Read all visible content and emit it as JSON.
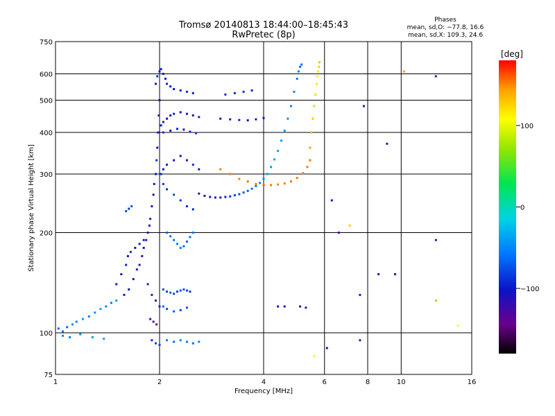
{
  "header": {
    "title_line1": "Tromsø 20140813 18:44:00–18:45:43",
    "title_line2": "RwPretec (8p)",
    "phases_title": "Phases",
    "phases_o": "mean, sd,O: −77.8, 16.6",
    "phases_x": "mean, sd,X: 109.3, 24.6"
  },
  "chart_data": {
    "type": "scatter",
    "xlabel": "Frequency [MHz]",
    "ylabel": "Stationary phase Virtual Height [km]",
    "x_scale": "log",
    "y_scale": "log",
    "xlim": [
      1,
      16
    ],
    "ylim": [
      75,
      750
    ],
    "xticks": [
      1,
      2,
      4,
      6,
      8,
      10,
      16
    ],
    "xtick_labels": [
      "1",
      "2",
      "4",
      "6",
      "8",
      "10",
      "16"
    ],
    "yticks": [
      75,
      100,
      200,
      300,
      400,
      500,
      600,
      750
    ],
    "ytick_labels": [
      "75",
      "100",
      "200",
      "300",
      "400",
      "500",
      "600",
      "750"
    ],
    "grid": true,
    "colorbar": {
      "label": "[deg]",
      "range": [
        -180,
        180
      ],
      "ticks": [
        100,
        0,
        -100
      ],
      "tick_labels": [
        "100",
        "0",
        "−100"
      ],
      "colors": [
        "#000000",
        "#6a008c",
        "#0a14c8",
        "#0078ff",
        "#00d2e6",
        "#00e650",
        "#96e600",
        "#ffff00",
        "#ffa000",
        "#ff0000"
      ]
    },
    "series": [
      {
        "x": [
          1.02,
          1.05,
          1.08,
          1.12,
          1.15,
          1.2,
          1.25,
          1.3,
          1.35,
          1.4,
          1.45,
          1.5,
          1.05,
          1.1,
          1.18,
          1.28,
          1.38
        ],
        "y": [
          103,
          101,
          104,
          106,
          108,
          110,
          112,
          115,
          118,
          120,
          123,
          125,
          98,
          97,
          99,
          97,
          96
        ],
        "phase": [
          -70,
          -60,
          -65,
          -50,
          -55,
          -45,
          -60,
          -50,
          -40,
          -55,
          -60,
          -45,
          -55,
          -60,
          -50,
          -45,
          -40
        ]
      },
      {
        "x": [
          1.5,
          1.55,
          1.6,
          1.62,
          1.65,
          1.7,
          1.75,
          1.8,
          1.58,
          1.63,
          1.68,
          1.72
        ],
        "y": [
          140,
          150,
          160,
          170,
          175,
          180,
          185,
          190,
          130,
          135,
          145,
          155
        ],
        "phase": [
          -100,
          -110,
          -95,
          -105,
          -90,
          -115,
          -100,
          -95,
          -110,
          -100,
          -105,
          -95
        ]
      },
      {
        "x": [
          1.6,
          1.63,
          1.66
        ],
        "y": [
          232,
          236,
          240
        ],
        "phase": [
          -80,
          -85,
          -75
        ]
      },
      {
        "x": [
          1.75,
          1.78,
          1.8,
          1.83,
          1.85,
          1.87,
          1.88,
          1.9,
          1.92,
          1.93,
          1.95,
          1.96,
          1.97,
          1.98,
          1.99,
          2.0,
          1.85,
          1.9,
          1.95,
          2.0,
          1.88,
          1.92,
          1.96,
          1.9,
          1.95,
          2.0
        ],
        "y": [
          160,
          170,
          180,
          190,
          200,
          210,
          220,
          240,
          260,
          280,
          300,
          330,
          360,
          400,
          450,
          500,
          140,
          130,
          125,
          120,
          110,
          108,
          106,
          95,
          93,
          92
        ],
        "phase": [
          -110,
          -120,
          -100,
          -130,
          -115,
          -105,
          -95,
          -110,
          -100,
          -95,
          -105,
          -90,
          -100,
          -110,
          -105,
          -100,
          -130,
          -125,
          -120,
          -115,
          -140,
          -130,
          -135,
          -90,
          -85,
          -80
        ]
      },
      {
        "x": [
          1.95,
          1.97,
          2.0,
          2.02,
          2.05,
          2.08,
          2.1,
          2.15,
          2.2,
          2.3,
          2.4,
          2.5
        ],
        "y": [
          560,
          590,
          610,
          620,
          600,
          580,
          560,
          550,
          540,
          535,
          530,
          525
        ],
        "phase": [
          -100,
          -95,
          -105,
          -90,
          -110,
          -100,
          -95,
          -105,
          -100,
          -95,
          -90,
          -100
        ]
      },
      {
        "x": [
          2.02,
          2.05,
          2.1,
          2.15,
          2.2,
          2.3,
          2.4,
          2.5,
          2.6,
          2.05,
          2.15,
          2.25,
          2.35,
          2.45,
          2.55
        ],
        "y": [
          420,
          430,
          440,
          450,
          455,
          460,
          455,
          450,
          445,
          400,
          405,
          410,
          408,
          402,
          398
        ],
        "phase": [
          -95,
          -105,
          -100,
          -110,
          -95,
          -100,
          -105,
          -100,
          -95,
          -90,
          -100,
          -95,
          -105,
          -100,
          -95
        ]
      },
      {
        "x": [
          2.02,
          2.05,
          2.1,
          2.2,
          2.3,
          2.4,
          2.5,
          2.6,
          2.05,
          2.1,
          2.2,
          2.3,
          2.4,
          2.5
        ],
        "y": [
          300,
          310,
          320,
          330,
          340,
          330,
          320,
          310,
          280,
          270,
          260,
          250,
          240,
          235
        ],
        "phase": [
          -90,
          -100,
          -95,
          -105,
          -100,
          -95,
          -90,
          -100,
          -85,
          -90,
          -80,
          -85,
          -90,
          -95
        ]
      },
      {
        "x": [
          2.1,
          2.15,
          2.2,
          2.25,
          2.3,
          2.35,
          2.4,
          2.45,
          2.5
        ],
        "y": [
          200,
          195,
          190,
          185,
          180,
          182,
          188,
          194,
          200
        ],
        "phase": [
          -70,
          -65,
          -60,
          -55,
          -60,
          -65,
          -70,
          -65,
          -60
        ]
      },
      {
        "x": [
          2.05,
          2.1,
          2.15,
          2.2,
          2.25,
          2.3,
          2.35,
          2.4,
          2.45,
          2.05,
          2.1,
          2.2,
          2.3,
          2.4
        ],
        "y": [
          135,
          133,
          132,
          131,
          133,
          134,
          135,
          134,
          133,
          120,
          118,
          116,
          117,
          119
        ],
        "phase": [
          -80,
          -85,
          -75,
          -80,
          -85,
          -80,
          -75,
          -80,
          -85,
          -70,
          -75,
          -70,
          -80,
          -75
        ]
      },
      {
        "x": [
          2.1,
          2.2,
          2.3,
          2.4,
          2.5,
          2.6
        ],
        "y": [
          95,
          94,
          95,
          94,
          93,
          94
        ],
        "phase": [
          -60,
          -65,
          -55,
          -60,
          -65,
          -55
        ]
      },
      {
        "x": [
          2.6,
          2.7,
          2.8,
          2.9,
          3.0,
          3.1,
          3.2,
          3.3,
          3.4,
          3.5,
          3.6,
          3.7,
          3.8,
          3.9,
          4.0,
          4.1,
          4.2,
          4.3,
          4.4,
          4.5,
          4.6,
          4.7,
          4.8,
          4.9,
          5.0,
          5.05,
          5.1,
          5.15
        ],
        "y": [
          262,
          258,
          256,
          255,
          255,
          256,
          257,
          259,
          261,
          264,
          267,
          271,
          276,
          282,
          290,
          300,
          315,
          332,
          352,
          378,
          405,
          440,
          480,
          530,
          580,
          610,
          630,
          640
        ],
        "phase": [
          -120,
          -115,
          -110,
          -105,
          -100,
          -95,
          -90,
          -85,
          -80,
          -75,
          -70,
          -65,
          -60,
          -55,
          -50,
          -45,
          -45,
          -40,
          -40,
          -45,
          -50,
          -50,
          -55,
          -55,
          -60,
          -60,
          -65,
          -65
        ]
      },
      {
        "x": [
          3.0,
          3.2,
          3.4,
          3.6,
          3.8,
          4.0,
          4.2,
          4.4,
          4.6,
          4.8,
          5.0,
          5.2,
          5.35,
          5.45
        ],
        "y": [
          310,
          300,
          290,
          285,
          280,
          278,
          278,
          279,
          281,
          285,
          292,
          302,
          315,
          330
        ],
        "phase": [
          150,
          150,
          148,
          152,
          150,
          155,
          150,
          148,
          150,
          152,
          150,
          148,
          150,
          152
        ]
      },
      {
        "x": [
          5.45,
          5.5,
          5.55,
          5.6,
          5.65,
          5.7,
          5.72,
          5.75,
          5.78,
          5.8
        ],
        "y": [
          360,
          400,
          440,
          480,
          520,
          560,
          590,
          610,
          630,
          650
        ],
        "phase": [
          140,
          130,
          125,
          120,
          115,
          110,
          105,
          110,
          120,
          130
        ]
      },
      {
        "x": [
          3.0,
          3.2,
          3.4,
          3.6,
          3.8,
          4.0,
          3.1,
          3.3,
          3.5,
          3.7
        ],
        "y": [
          440,
          438,
          436,
          435,
          438,
          442,
          520,
          525,
          530,
          535
        ],
        "phase": [
          -100,
          -105,
          -95,
          -100,
          -105,
          -100,
          -90,
          -95,
          -90,
          -95
        ]
      },
      {
        "x": [
          4.4,
          4.6,
          5.1,
          5.3,
          6.3,
          6.6,
          7.1,
          7.6,
          7.6,
          8.6,
          9.6,
          10.2,
          12.6,
          12.6,
          14.6,
          9.1,
          7.8,
          5.6,
          12.6,
          6.1
        ],
        "y": [
          120,
          120,
          120,
          119,
          250,
          200,
          210,
          130,
          95,
          150,
          150,
          610,
          590,
          190,
          105,
          370,
          480,
          85,
          125,
          90
        ],
        "phase": [
          -110,
          -110,
          -105,
          -110,
          -100,
          -120,
          120,
          -120,
          -130,
          -100,
          -110,
          140,
          -130,
          -130,
          100,
          -120,
          -120,
          100,
          60,
          -110
        ]
      }
    ]
  }
}
